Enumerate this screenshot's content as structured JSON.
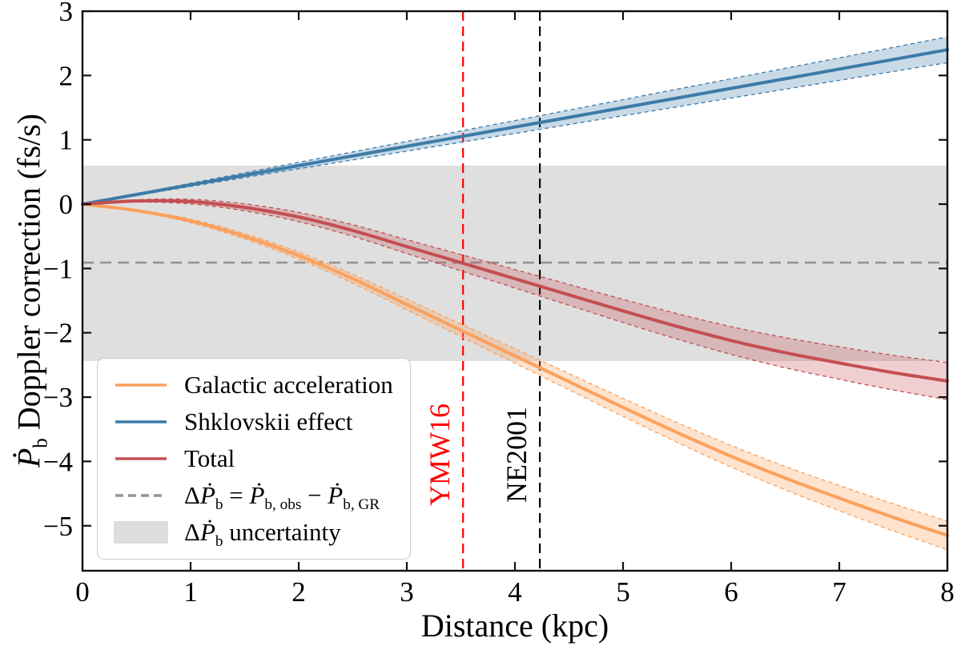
{
  "chart_data": {
    "type": "line",
    "title": "",
    "xlabel": "Distance (kpc)",
    "ylabel": "*Ṗ*_{b} Doppler correction (fs/s)",
    "xlim": [
      0,
      8
    ],
    "ylim": [
      -5.7,
      3.0
    ],
    "xticks": [
      0,
      1,
      2,
      3,
      4,
      5,
      6,
      7,
      8
    ],
    "yticks": [
      3,
      2,
      1,
      0,
      -1,
      -2,
      -3,
      -4,
      -5
    ],
    "grid": false,
    "legend_position": "lower left",
    "x": [
      0,
      0.5,
      1,
      1.5,
      2,
      2.5,
      3,
      3.5,
      4,
      4.5,
      5,
      5.5,
      6,
      6.5,
      7,
      7.5,
      8
    ],
    "series": [
      {
        "name": "Galactic acceleration",
        "color": "#FBA15C",
        "band_fill": "rgba(251,161,92,0.30)",
        "y": [
          0,
          -0.1,
          -0.26,
          -0.5,
          -0.8,
          -1.16,
          -1.56,
          -1.96,
          -2.36,
          -2.76,
          -3.16,
          -3.55,
          -3.92,
          -4.26,
          -4.57,
          -4.87,
          -5.15
        ],
        "band_halfwidth": [
          0,
          0.014,
          0.028,
          0.042,
          0.056,
          0.07,
          0.084,
          0.098,
          0.112,
          0.126,
          0.14,
          0.154,
          0.168,
          0.182,
          0.196,
          0.21,
          0.224
        ]
      },
      {
        "name": "Shklovskii effect",
        "color": "#3D7BA8",
        "band_fill": "rgba(61,123,168,0.28)",
        "y": [
          0,
          0.15,
          0.3,
          0.45,
          0.6,
          0.75,
          0.9,
          1.05,
          1.2,
          1.35,
          1.5,
          1.65,
          1.8,
          1.95,
          2.1,
          2.25,
          2.4
        ],
        "band_halfwidth": [
          0,
          0.0125,
          0.025,
          0.0375,
          0.05,
          0.0625,
          0.075,
          0.0875,
          0.1,
          0.1125,
          0.125,
          0.1375,
          0.15,
          0.1625,
          0.175,
          0.1875,
          0.2
        ]
      },
      {
        "name": "Total",
        "color": "#C44E52",
        "band_fill": "rgba(196,78,82,0.27)",
        "y": [
          0,
          0.05,
          0.04,
          -0.05,
          -0.2,
          -0.41,
          -0.66,
          -0.91,
          -1.16,
          -1.41,
          -1.66,
          -1.9,
          -2.12,
          -2.31,
          -2.47,
          -2.62,
          -2.75
        ],
        "band_halfwidth": [
          0,
          0.018,
          0.036,
          0.054,
          0.072,
          0.09,
          0.108,
          0.126,
          0.144,
          0.162,
          0.18,
          0.198,
          0.216,
          0.234,
          0.252,
          0.27,
          0.288
        ]
      }
    ],
    "reference_line": {
      "y": -0.91,
      "color": "#949494",
      "style": "dashed",
      "label": "Δ*Ṗ*_{b} = *Ṗ*_{b, obs} − *Ṗ*_{b, GR}"
    },
    "uncertainty_band": {
      "ymin": -2.44,
      "ymax": 0.6,
      "color": "rgba(128,128,128,0.25)",
      "label": "Δ*Ṗ*_{b} uncertainty"
    },
    "vlines": [
      {
        "x": 3.52,
        "color": "#FF0000",
        "label": "YMW16"
      },
      {
        "x": 4.23,
        "color": "#000000",
        "label": "NE2001"
      }
    ]
  }
}
